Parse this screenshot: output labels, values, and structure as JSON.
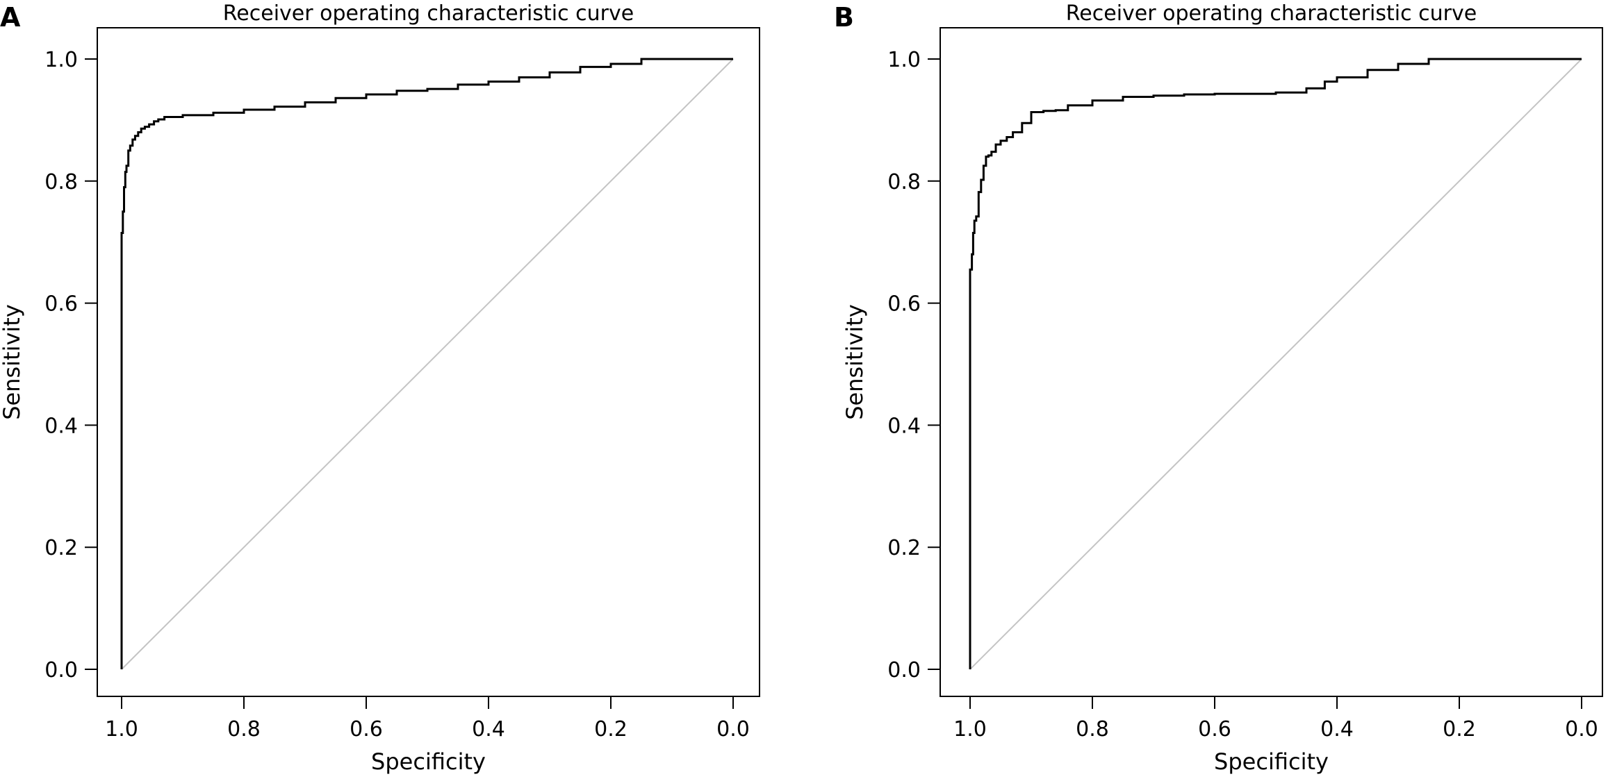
{
  "chart_data": [
    {
      "panel": "A",
      "type": "line",
      "title": "Receiver operating characteristic curve",
      "xlabel": "Specificity",
      "ylabel": "Sensitivity",
      "xlim": [
        1.0,
        0.0
      ],
      "ylim": [
        0.0,
        1.0
      ],
      "x_reversed": true,
      "grid": false,
      "legend": "none",
      "xticks": [
        "1.0",
        "0.8",
        "0.6",
        "0.4",
        "0.2",
        "0.0"
      ],
      "yticks": [
        "0.0",
        "0.2",
        "0.4",
        "0.6",
        "0.8",
        "1.0"
      ],
      "reference_line": {
        "x": [
          1.0,
          0.0
        ],
        "y": [
          0.0,
          1.0
        ]
      },
      "series": [
        {
          "x": [
            1.0,
            1.0,
            0.998,
            0.996,
            0.994,
            0.992,
            0.989,
            0.986,
            0.982,
            0.978,
            0.973,
            0.968,
            0.962,
            0.955,
            0.947,
            0.94,
            0.93,
            0.9,
            0.85,
            0.8,
            0.75,
            0.7,
            0.65,
            0.6,
            0.55,
            0.5,
            0.45,
            0.4,
            0.35,
            0.3,
            0.25,
            0.2,
            0.15,
            0.11,
            0.0
          ],
          "y": [
            0.0,
            0.675,
            0.715,
            0.75,
            0.79,
            0.815,
            0.825,
            0.85,
            0.858,
            0.868,
            0.874,
            0.88,
            0.886,
            0.889,
            0.893,
            0.898,
            0.901,
            0.905,
            0.908,
            0.912,
            0.917,
            0.922,
            0.929,
            0.936,
            0.942,
            0.948,
            0.951,
            0.958,
            0.963,
            0.97,
            0.978,
            0.987,
            0.992,
            1.0,
            1.0
          ]
        }
      ]
    },
    {
      "panel": "B",
      "type": "line",
      "title": "Receiver operating characteristic curve",
      "xlabel": "Specificity",
      "ylabel": "Sensitivity",
      "xlim": [
        1.0,
        0.0
      ],
      "ylim": [
        0.0,
        1.0
      ],
      "x_reversed": true,
      "grid": false,
      "legend": "none",
      "xticks": [
        "1.0",
        "0.8",
        "0.6",
        "0.4",
        "0.2",
        "0.0"
      ],
      "yticks": [
        "0.0",
        "0.2",
        "0.4",
        "0.6",
        "0.8",
        "1.0"
      ],
      "reference_line": {
        "x": [
          1.0,
          0.0
        ],
        "y": [
          0.0,
          1.0
        ]
      },
      "series": [
        {
          "x": [
            1.0,
            1.0,
            0.997,
            0.995,
            0.993,
            0.99,
            0.986,
            0.982,
            0.978,
            0.974,
            0.97,
            0.965,
            0.958,
            0.95,
            0.94,
            0.93,
            0.915,
            0.9,
            0.88,
            0.86,
            0.84,
            0.8,
            0.75,
            0.7,
            0.65,
            0.6,
            0.55,
            0.5,
            0.45,
            0.42,
            0.4,
            0.35,
            0.3,
            0.25,
            0.21,
            0.0
          ],
          "y": [
            0.0,
            0.49,
            0.655,
            0.68,
            0.715,
            0.735,
            0.742,
            0.782,
            0.802,
            0.825,
            0.84,
            0.842,
            0.848,
            0.86,
            0.866,
            0.872,
            0.88,
            0.895,
            0.913,
            0.915,
            0.916,
            0.924,
            0.932,
            0.938,
            0.94,
            0.942,
            0.943,
            0.943,
            0.945,
            0.952,
            0.963,
            0.97,
            0.982,
            0.992,
            1.0,
            1.0
          ]
        }
      ]
    }
  ]
}
